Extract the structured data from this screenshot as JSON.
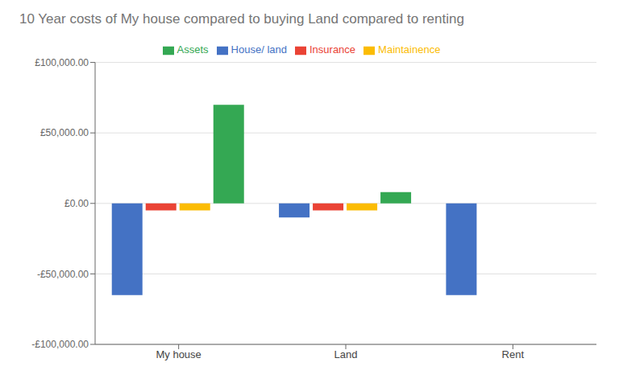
{
  "chart_data": {
    "type": "bar",
    "title": "10 Year costs of My house compared to buying Land compared to renting",
    "categories": [
      "My house",
      "Land",
      "Rent"
    ],
    "series": [
      {
        "name": "House/ land",
        "color": "#4472C4",
        "values": [
          -65000,
          -10000,
          -65000
        ]
      },
      {
        "name": "Insurance",
        "color": "#EA4335",
        "values": [
          -5000,
          -5000,
          0
        ]
      },
      {
        "name": "Maintainence",
        "color": "#FBBC04",
        "values": [
          -5000,
          -5000,
          0
        ]
      },
      {
        "name": "Assets",
        "color": "#34A853",
        "values": [
          70000,
          8000,
          0
        ]
      }
    ],
    "ylim": [
      -100000,
      100000
    ],
    "yticks": [
      {
        "value": -100000,
        "label": "-£100,000.00"
      },
      {
        "value": -50000,
        "label": "-£50,000.00"
      },
      {
        "value": 0,
        "label": "£0.00"
      },
      {
        "value": 50000,
        "label": "£50,000.00"
      },
      {
        "value": 100000,
        "label": "£100,000.00"
      }
    ],
    "grid": true,
    "legend": "top"
  }
}
